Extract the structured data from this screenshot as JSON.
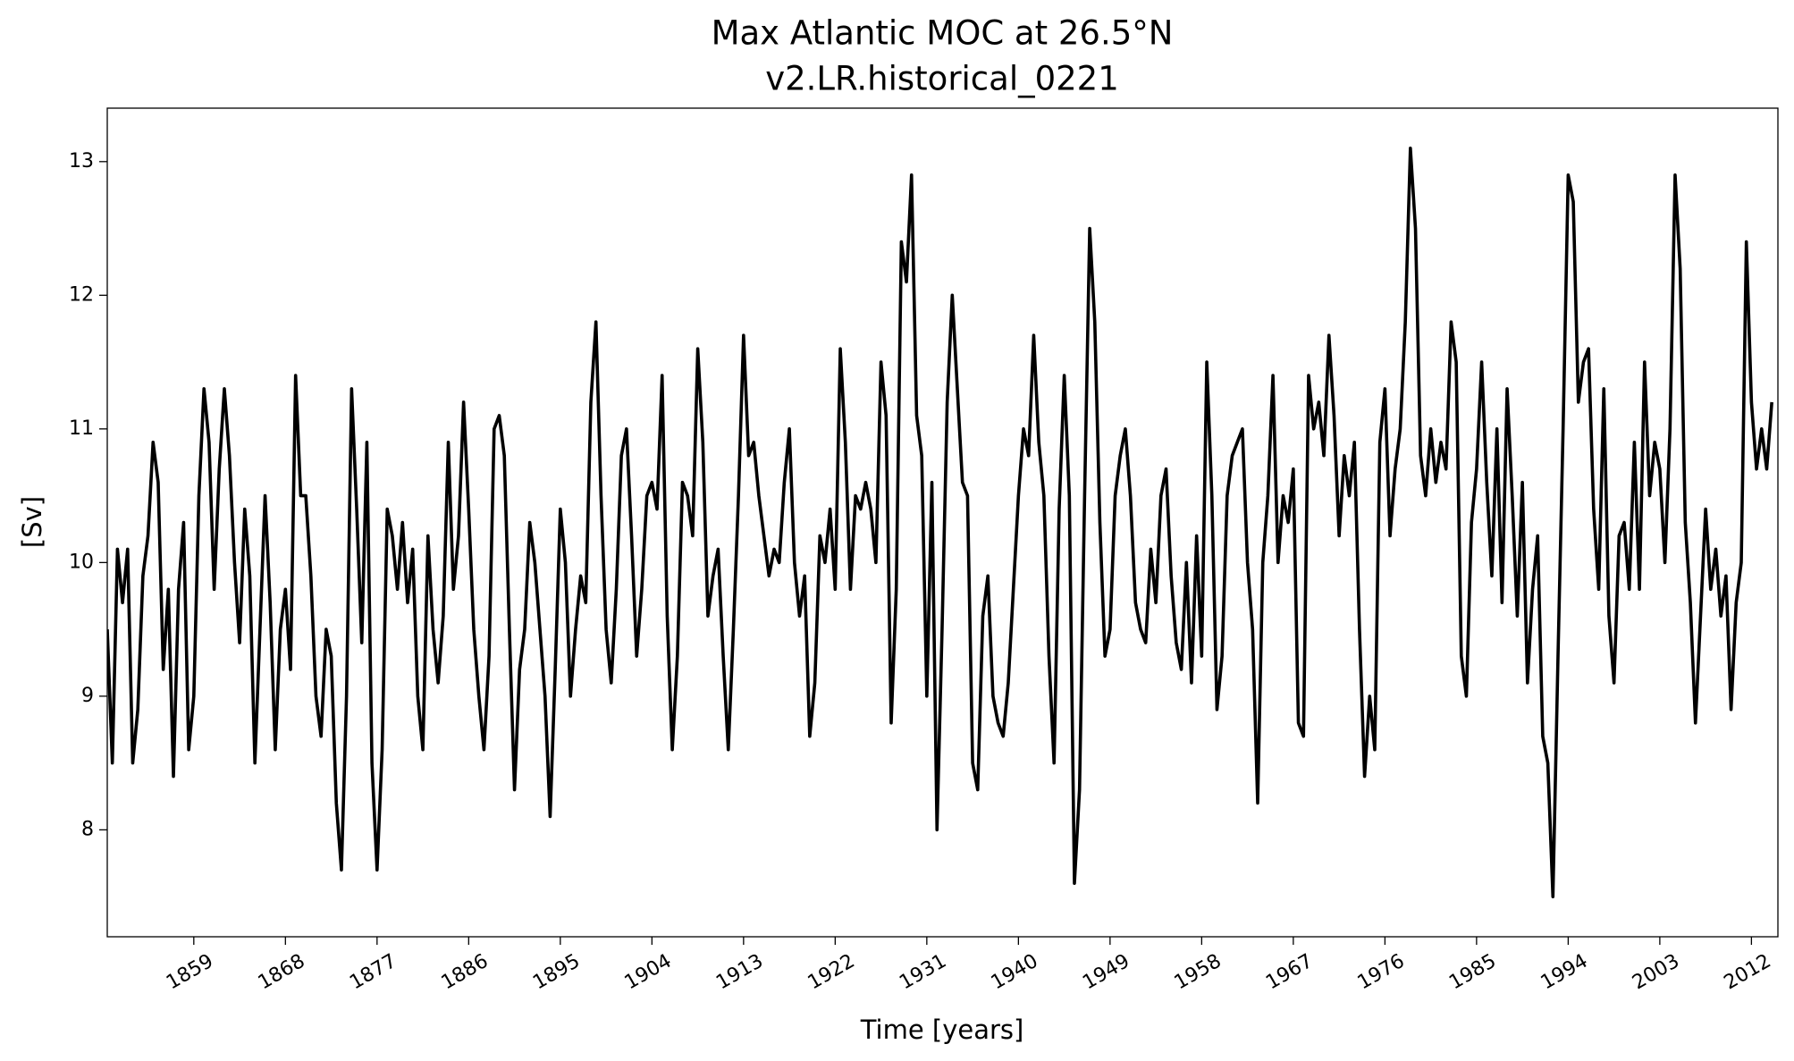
{
  "chart_data": {
    "type": "line",
    "title": "Max Atlantic MOC at 26.5°N",
    "subtitle": "v2.LR.historical_0221",
    "x_label": "Time [years]",
    "y_label": "[Sv]",
    "xlim": [
      1850.5,
      2014.6
    ],
    "ylim": [
      7.2,
      13.4
    ],
    "xticks": [
      1859,
      1868,
      1877,
      1886,
      1895,
      1904,
      1913,
      1922,
      1931,
      1940,
      1949,
      1958,
      1967,
      1976,
      1985,
      1994,
      2003,
      2012
    ],
    "yticks": [
      8,
      9,
      10,
      11,
      12,
      13
    ],
    "x": [
      1850.5,
      1851,
      1851.5,
      1852,
      1852.5,
      1853,
      1853.5,
      1854,
      1854.5,
      1855,
      1855.5,
      1856,
      1856.5,
      1857,
      1857.5,
      1858,
      1858.5,
      1859,
      1859.5,
      1860,
      1860.5,
      1861,
      1861.5,
      1862,
      1862.5,
      1863,
      1863.5,
      1864,
      1864.5,
      1865,
      1865.5,
      1866,
      1866.5,
      1867,
      1867.5,
      1868,
      1868.5,
      1869,
      1869.5,
      1870,
      1870.5,
      1871,
      1871.5,
      1872,
      1872.5,
      1873,
      1873.5,
      1874,
      1874.5,
      1875,
      1875.5,
      1876,
      1876.5,
      1877,
      1877.5,
      1878,
      1878.5,
      1879,
      1879.5,
      1880,
      1880.5,
      1881,
      1881.5,
      1882,
      1882.5,
      1883,
      1883.5,
      1884,
      1884.5,
      1885,
      1885.5,
      1886,
      1886.5,
      1887,
      1887.5,
      1888,
      1888.5,
      1889,
      1889.5,
      1890,
      1890.5,
      1891,
      1891.5,
      1892,
      1892.5,
      1893,
      1893.5,
      1894,
      1894.5,
      1895,
      1895.5,
      1896,
      1896.5,
      1897,
      1897.5,
      1898,
      1898.5,
      1899,
      1899.5,
      1900,
      1900.5,
      1901,
      1901.5,
      1902,
      1902.5,
      1903,
      1903.5,
      1904,
      1904.5,
      1905,
      1905.5,
      1906,
      1906.5,
      1907,
      1907.5,
      1908,
      1908.5,
      1909,
      1909.5,
      1910,
      1910.5,
      1911,
      1911.5,
      1912,
      1912.5,
      1913,
      1913.5,
      1914,
      1914.5,
      1915,
      1915.5,
      1916,
      1916.5,
      1917,
      1917.5,
      1918,
      1918.5,
      1919,
      1919.5,
      1920,
      1920.5,
      1921,
      1921.5,
      1922,
      1922.5,
      1923,
      1923.5,
      1924,
      1924.5,
      1925,
      1925.5,
      1926,
      1926.5,
      1927,
      1927.5,
      1928,
      1928.5,
      1929,
      1929.5,
      1930,
      1930.5,
      1931,
      1931.5,
      1932,
      1932.5,
      1933,
      1933.5,
      1934,
      1934.5,
      1935,
      1935.5,
      1936,
      1936.5,
      1937,
      1937.5,
      1938,
      1938.5,
      1939,
      1939.5,
      1940,
      1940.5,
      1941,
      1941.5,
      1942,
      1942.5,
      1943,
      1943.5,
      1944,
      1944.5,
      1945,
      1945.5,
      1946,
      1946.5,
      1947,
      1947.5,
      1948,
      1948.5,
      1949,
      1949.5,
      1950,
      1950.5,
      1951,
      1951.5,
      1952,
      1952.5,
      1953,
      1953.5,
      1954,
      1954.5,
      1955,
      1955.5,
      1956,
      1956.5,
      1957,
      1957.5,
      1958,
      1958.5,
      1959,
      1959.5,
      1960,
      1960.5,
      1961,
      1961.5,
      1962,
      1962.5,
      1963,
      1963.5,
      1964,
      1964.5,
      1965,
      1965.5,
      1966,
      1966.5,
      1967,
      1967.5,
      1968,
      1968.5,
      1969,
      1969.5,
      1970,
      1970.5,
      1971,
      1971.5,
      1972,
      1972.5,
      1973,
      1973.5,
      1974,
      1974.5,
      1975,
      1975.5,
      1976,
      1976.5,
      1977,
      1977.5,
      1978,
      1978.5,
      1979,
      1979.5,
      1980,
      1980.5,
      1981,
      1981.5,
      1982,
      1982.5,
      1983,
      1983.5,
      1984,
      1984.5,
      1985,
      1985.5,
      1986,
      1986.5,
      1987,
      1987.5,
      1988,
      1988.5,
      1989,
      1989.5,
      1990,
      1990.5,
      1991,
      1991.5,
      1992,
      1992.5,
      1993,
      1993.5,
      1994,
      1994.5,
      1995,
      1995.5,
      1996,
      1996.5,
      1997,
      1997.5,
      1998,
      1998.5,
      1999,
      1999.5,
      2000,
      2000.5,
      2001,
      2001.5,
      2002,
      2002.5,
      2003,
      2003.5,
      2004,
      2004.5,
      2005,
      2005.5,
      2006,
      2006.5,
      2007,
      2007.5,
      2008,
      2008.5,
      2009,
      2009.5,
      2010,
      2010.5,
      2011,
      2011.5,
      2012,
      2012.5,
      2013,
      2013.5,
      2014
    ],
    "series": [
      {
        "color": "#000000",
        "values": [
          9.5,
          8.5,
          10.1,
          9.7,
          10.1,
          8.5,
          8.9,
          9.9,
          10.2,
          10.9,
          10.6,
          9.2,
          9.8,
          8.4,
          9.8,
          10.3,
          8.6,
          9.0,
          10.5,
          11.3,
          10.9,
          9.8,
          10.7,
          11.3,
          10.8,
          10.0,
          9.4,
          10.4,
          9.9,
          8.5,
          9.5,
          10.5,
          9.7,
          8.6,
          9.5,
          9.8,
          9.2,
          11.4,
          10.5,
          10.5,
          9.9,
          9.0,
          8.7,
          9.5,
          9.3,
          8.2,
          7.7,
          9.0,
          11.3,
          10.4,
          9.4,
          10.9,
          8.5,
          7.7,
          8.6,
          10.4,
          10.2,
          9.8,
          10.3,
          9.7,
          10.1,
          9.0,
          8.6,
          10.2,
          9.5,
          9.1,
          9.6,
          10.9,
          9.8,
          10.2,
          11.2,
          10.4,
          9.5,
          9.0,
          8.6,
          9.3,
          11.0,
          11.1,
          10.8,
          9.5,
          8.3,
          9.2,
          9.5,
          10.3,
          10.0,
          9.5,
          9.0,
          8.1,
          9.2,
          10.4,
          10.0,
          9.0,
          9.5,
          9.9,
          9.7,
          11.2,
          11.8,
          10.5,
          9.5,
          9.1,
          9.8,
          10.8,
          11.0,
          10.2,
          9.3,
          9.8,
          10.5,
          10.6,
          10.4,
          11.4,
          9.6,
          8.6,
          9.3,
          10.6,
          10.5,
          10.2,
          11.6,
          10.9,
          9.6,
          9.9,
          10.1,
          9.3,
          8.6,
          9.5,
          10.5,
          11.7,
          10.8,
          10.9,
          10.5,
          10.2,
          9.9,
          10.1,
          10.0,
          10.6,
          11.0,
          10.0,
          9.6,
          9.9,
          8.7,
          9.1,
          10.2,
          10.0,
          10.4,
          9.8,
          11.6,
          10.9,
          9.8,
          10.5,
          10.4,
          10.6,
          10.4,
          10.0,
          11.5,
          11.1,
          8.8,
          9.8,
          12.4,
          12.1,
          12.9,
          11.1,
          10.8,
          9.0,
          10.6,
          8.0,
          9.5,
          11.2,
          12.0,
          11.3,
          10.6,
          10.5,
          8.5,
          8.3,
          9.6,
          9.9,
          9.0,
          8.8,
          8.7,
          9.1,
          9.8,
          10.5,
          11.0,
          10.8,
          11.7,
          10.9,
          10.5,
          9.3,
          8.5,
          10.4,
          11.4,
          10.5,
          7.6,
          8.3,
          10.5,
          12.5,
          11.8,
          10.3,
          9.3,
          9.5,
          10.5,
          10.8,
          11.0,
          10.5,
          9.7,
          9.5,
          9.4,
          10.1,
          9.7,
          10.5,
          10.7,
          9.9,
          9.4,
          9.2,
          10.0,
          9.1,
          10.2,
          9.3,
          11.5,
          10.5,
          8.9,
          9.3,
          10.5,
          10.8,
          10.9,
          11.0,
          10.0,
          9.5,
          8.2,
          10.0,
          10.5,
          11.4,
          10.0,
          10.5,
          10.3,
          10.7,
          8.8,
          8.7,
          11.4,
          11.0,
          11.2,
          10.8,
          11.7,
          11.1,
          10.2,
          10.8,
          10.5,
          10.9,
          9.5,
          8.4,
          9.0,
          8.6,
          10.9,
          11.3,
          10.2,
          10.7,
          11.0,
          11.8,
          13.1,
          12.5,
          10.8,
          10.5,
          11.0,
          10.6,
          10.9,
          10.7,
          11.8,
          11.5,
          9.3,
          9.0,
          10.3,
          10.7,
          11.5,
          10.6,
          9.9,
          11.0,
          9.7,
          11.3,
          10.5,
          9.6,
          10.6,
          9.1,
          9.8,
          10.2,
          8.7,
          8.5,
          7.5,
          9.3,
          11.0,
          12.9,
          12.7,
          11.2,
          11.5,
          11.6,
          10.4,
          9.8,
          11.3,
          9.6,
          9.1,
          10.2,
          10.3,
          9.8,
          10.9,
          9.8,
          11.5,
          10.5,
          10.9,
          10.7,
          10.0,
          11.0,
          12.9,
          12.2,
          10.3,
          9.7,
          8.8,
          9.6,
          10.4,
          9.8,
          10.1,
          9.6,
          9.9,
          8.9,
          9.7,
          10.0,
          12.4,
          11.2,
          10.7,
          11.0,
          10.7,
          11.2
        ]
      }
    ]
  }
}
